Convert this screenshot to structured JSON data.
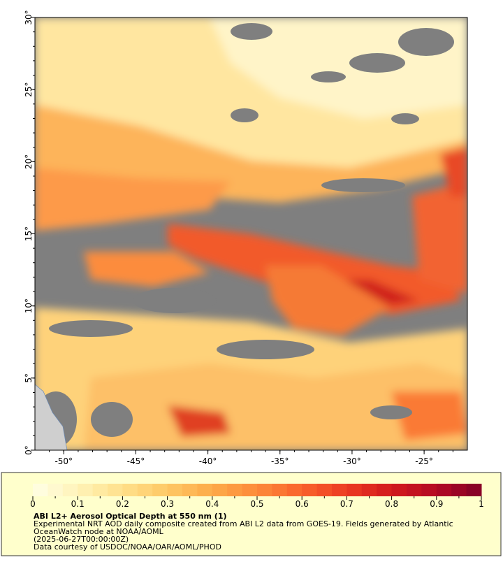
{
  "map": {
    "lonlim": [
      -52,
      -22
    ],
    "latlim": [
      0,
      30
    ],
    "lonticks": [
      {
        "value": -50,
        "label": "-50°"
      },
      {
        "value": -45,
        "label": "-45°"
      },
      {
        "value": -40,
        "label": "-40°"
      },
      {
        "value": -35,
        "label": "-35°"
      },
      {
        "value": -30,
        "label": "-30°"
      },
      {
        "value": -25,
        "label": "-25°"
      }
    ],
    "latticks": [
      {
        "value": 0,
        "label": "0°"
      },
      {
        "value": 5,
        "label": "5°"
      },
      {
        "value": 10,
        "label": "10°"
      },
      {
        "value": 15,
        "label": "15°"
      },
      {
        "value": 20,
        "label": "20°"
      },
      {
        "value": 25,
        "label": "25°"
      },
      {
        "value": 30,
        "label": "30°"
      }
    ]
  },
  "colorbar": {
    "range": [
      0,
      1
    ],
    "ticks": [
      0,
      0.1,
      0.2,
      0.3,
      0.4,
      0.5,
      0.6,
      0.7,
      0.8,
      0.9,
      1
    ],
    "colors": [
      "#ffffe5",
      "#fff3b8",
      "#ffe08a",
      "#fec865",
      "#fdaa48",
      "#fd8a3a",
      "#f9632c",
      "#ec3a22",
      "#d21a1c",
      "#b30a24",
      "#800026"
    ]
  },
  "caption": {
    "title": "ABI L2+ Aerosol Optical Depth at 550 nm (1)",
    "lines": [
      "Experimental NRT AOD daily composite created from ABI L2 data from GOES-19. Fields generated by Atlantic",
      "OceanWatch node at NOAA/AOML",
      "(2025-06-27T00:00:00Z)",
      "Data courtesy of USDOC/NOAA/OAR/AOML/PHOD"
    ]
  }
}
